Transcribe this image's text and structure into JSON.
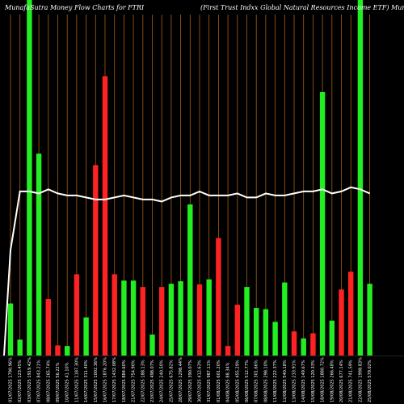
{
  "chart_data": {
    "type": "bar",
    "title_left": "MunafaSutra  Money Flow  Charts for FTRI",
    "title_right": "(First Trust Indxx Global Natural Resources Income   ETF)  MunafaSutra.com",
    "categories": [
      "01/07/2025 1790.96%",
      "02/07/2025 123.45%",
      "03/07/2025 1919.42%",
      "07/07/2025 843.21%",
      "08/07/2025 265.74%",
      "09/07/2025 56.22%",
      "10/07/2025 41.10%",
      "11/07/2025 1187.30%",
      "14/07/2025 311.40%",
      "15/07/2025 1002.36%",
      "16/07/2025 1876.20%",
      "17/07/2025 1432.08%",
      "18/07/2025 884.60%",
      "21/07/2025 754.90%",
      "22/07/2025 188.13%",
      "23/07/2025 498.07%",
      "24/07/2025 240.50%",
      "25/07/2025 675.82%",
      "28/07/2025 1298.44%",
      "29/07/2025 390.07%",
      "30/07/2025 412.63%",
      "31/07/2025 987.11%",
      "01/08/2025 601.20%",
      "04/08/2025 88.34%",
      "05/08/2025 455.29%",
      "06/08/2025 512.77%",
      "07/08/2025 301.66%",
      "08/08/2025 298.10%",
      "11/08/2025 222.37%",
      "12/08/2025 540.18%",
      "13/08/2025 233.91%",
      "14/08/2025 149.67%",
      "15/08/2025 120.33%",
      "18/08/2025 1880.72%",
      "19/08/2025 266.48%",
      "20/08/2025 677.14%",
      "21/08/2025 741.59%",
      "22/08/2025 1998.83%",
      "25/08/2025 579.02%"
    ],
    "values": [
      82,
      25,
      560,
      318,
      89,
      16,
      15,
      128,
      60,
      300,
      440,
      128,
      118,
      118,
      108,
      33,
      108,
      113,
      117,
      238,
      112,
      120,
      185,
      15,
      80,
      108,
      75,
      73,
      53,
      115,
      38,
      27,
      35,
      415,
      55,
      104,
      132,
      560,
      113
    ],
    "directions": [
      "up",
      "up",
      "up",
      "up",
      "down",
      "down",
      "up",
      "down",
      "up",
      "down",
      "down",
      "down",
      "up",
      "up",
      "down",
      "up",
      "down",
      "up",
      "up",
      "up",
      "down",
      "up",
      "down",
      "down",
      "down",
      "up",
      "up",
      "up",
      "up",
      "up",
      "down",
      "up",
      "down",
      "up",
      "up",
      "down",
      "down",
      "up",
      "up"
    ],
    "price_line": [
      0.52,
      0.81,
      0.81,
      0.8,
      0.82,
      0.8,
      0.79,
      0.79,
      0.78,
      0.77,
      0.77,
      0.78,
      0.79,
      0.78,
      0.77,
      0.77,
      0.76,
      0.78,
      0.79,
      0.79,
      0.81,
      0.79,
      0.79,
      0.79,
      0.8,
      0.78,
      0.78,
      0.8,
      0.79,
      0.79,
      0.8,
      0.81,
      0.81,
      0.82,
      0.8,
      0.81,
      0.83,
      0.82,
      0.8
    ],
    "colors": {
      "background": "#000000",
      "up": "#22ee22",
      "down": "#ff2222",
      "grid": "#a85e16",
      "price_line": "#ffffff",
      "text": "#ffffff"
    },
    "ylim": [
      0,
      560
    ],
    "grid": true
  }
}
